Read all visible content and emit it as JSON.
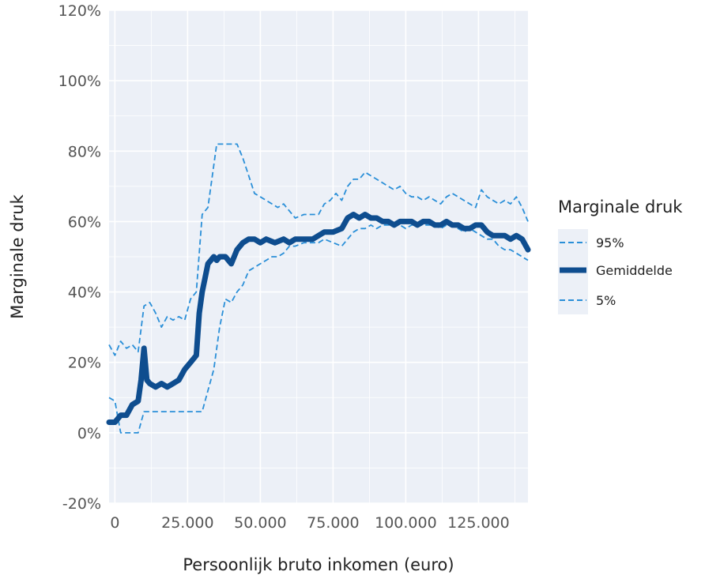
{
  "chart_data": {
    "type": "line",
    "title": "",
    "xlabel": "Persoonlijk bruto inkomen (euro)",
    "ylabel": "Marginale druk",
    "xlim": [
      -2000,
      142000
    ],
    "ylim": [
      -20,
      120
    ],
    "x_ticks": [
      0,
      25000,
      50000,
      75000,
      100000,
      125000
    ],
    "x_tick_labels": [
      "0",
      "25.000",
      "50.000",
      "75.000",
      "100.000",
      "125.000"
    ],
    "y_ticks": [
      -20,
      0,
      20,
      40,
      60,
      80,
      100,
      120
    ],
    "y_tick_labels": [
      "-20%",
      "0%",
      "20%",
      "40%",
      "60%",
      "80%",
      "100%",
      "120%"
    ],
    "grid": true,
    "legend": {
      "title": "Marginale druk",
      "position": "right",
      "entries": [
        "95%",
        "Gemiddelde",
        "5%"
      ]
    },
    "colors": {
      "panel": "#ecf0f7",
      "grid": "#ffffff",
      "mean": "#0e4d8f",
      "bands": "#2a8fd8"
    },
    "series": [
      {
        "name": "95%",
        "style": "dashed",
        "x": [
          -2000,
          0,
          2000,
          4000,
          6000,
          8000,
          10000,
          12000,
          14000,
          16000,
          18000,
          20000,
          22000,
          24000,
          26000,
          28000,
          30000,
          32000,
          35000,
          38000,
          40000,
          42000,
          44000,
          46000,
          48000,
          50000,
          52000,
          54000,
          56000,
          58000,
          60000,
          62000,
          65000,
          68000,
          70000,
          72000,
          74000,
          76000,
          78000,
          80000,
          82000,
          84000,
          86000,
          88000,
          90000,
          92000,
          94000,
          96000,
          98000,
          100000,
          102000,
          104000,
          106000,
          108000,
          110000,
          112000,
          114000,
          116000,
          118000,
          120000,
          122000,
          124000,
          126000,
          128000,
          130000,
          132000,
          134000,
          136000,
          138000,
          140000,
          142000
        ],
        "y": [
          25,
          22,
          26,
          24,
          25,
          23,
          36,
          37,
          34,
          30,
          33,
          32,
          33,
          32,
          38,
          40,
          62,
          64,
          82,
          82,
          82,
          82,
          78,
          73,
          68,
          67,
          66,
          65,
          64,
          65,
          63,
          61,
          62,
          62,
          62,
          65,
          66,
          68,
          66,
          70,
          72,
          72,
          74,
          73,
          72,
          71,
          70,
          69,
          70,
          68,
          67,
          67,
          66,
          67,
          66,
          65,
          67,
          68,
          67,
          66,
          65,
          64,
          69,
          67,
          66,
          65,
          66,
          65,
          67,
          64,
          60
        ]
      },
      {
        "name": "Gemiddelde",
        "style": "solid",
        "x": [
          -2000,
          0,
          2000,
          4000,
          6000,
          8000,
          9000,
          10000,
          11000,
          12000,
          14000,
          16000,
          18000,
          20000,
          22000,
          24000,
          26000,
          28000,
          29000,
          30000,
          31000,
          32000,
          33000,
          34000,
          35000,
          36000,
          38000,
          40000,
          42000,
          44000,
          46000,
          48000,
          50000,
          52000,
          55000,
          58000,
          60000,
          62000,
          65000,
          68000,
          70000,
          72000,
          75000,
          78000,
          80000,
          82000,
          84000,
          86000,
          88000,
          90000,
          92000,
          94000,
          96000,
          98000,
          100000,
          102000,
          104000,
          106000,
          108000,
          110000,
          112000,
          114000,
          116000,
          118000,
          120000,
          122000,
          124000,
          126000,
          128000,
          130000,
          132000,
          134000,
          136000,
          138000,
          140000,
          142000
        ],
        "y": [
          3,
          3,
          5,
          5,
          8,
          9,
          15,
          24,
          15,
          14,
          13,
          14,
          13,
          14,
          15,
          18,
          20,
          22,
          34,
          40,
          44,
          48,
          49,
          50,
          49,
          50,
          50,
          48,
          52,
          54,
          55,
          55,
          54,
          55,
          54,
          55,
          54,
          55,
          55,
          55,
          56,
          57,
          57,
          58,
          61,
          62,
          61,
          62,
          61,
          61,
          60,
          60,
          59,
          60,
          60,
          60,
          59,
          60,
          60,
          59,
          59,
          60,
          59,
          59,
          58,
          58,
          59,
          59,
          57,
          56,
          56,
          56,
          55,
          56,
          55,
          52
        ]
      },
      {
        "name": "5%",
        "style": "dashed",
        "x": [
          -2000,
          0,
          2000,
          4000,
          5000,
          6000,
          7000,
          8000,
          10000,
          12000,
          14000,
          16000,
          18000,
          20000,
          22000,
          24000,
          26000,
          28000,
          30000,
          32000,
          34000,
          36000,
          38000,
          40000,
          42000,
          44000,
          46000,
          48000,
          50000,
          52000,
          54000,
          56000,
          58000,
          60000,
          62000,
          65000,
          68000,
          70000,
          72000,
          75000,
          78000,
          80000,
          82000,
          84000,
          86000,
          88000,
          90000,
          92000,
          94000,
          96000,
          98000,
          100000,
          102000,
          104000,
          106000,
          108000,
          110000,
          112000,
          114000,
          116000,
          118000,
          120000,
          122000,
          124000,
          126000,
          128000,
          130000,
          132000,
          134000,
          136000,
          138000,
          140000,
          142000
        ],
        "y": [
          10,
          9,
          0,
          0,
          0,
          0,
          0,
          0,
          6,
          6,
          6,
          6,
          6,
          6,
          6,
          6,
          6,
          6,
          6,
          12,
          18,
          30,
          38,
          37,
          40,
          42,
          46,
          47,
          48,
          49,
          50,
          50,
          51,
          53,
          53,
          54,
          54,
          54,
          55,
          54,
          53,
          55,
          57,
          58,
          58,
          59,
          58,
          59,
          59,
          59,
          59,
          58,
          59,
          59,
          59,
          59,
          59,
          58,
          59,
          59,
          58,
          57,
          58,
          57,
          56,
          55,
          55,
          53,
          52,
          52,
          51,
          50,
          49
        ]
      }
    ]
  }
}
